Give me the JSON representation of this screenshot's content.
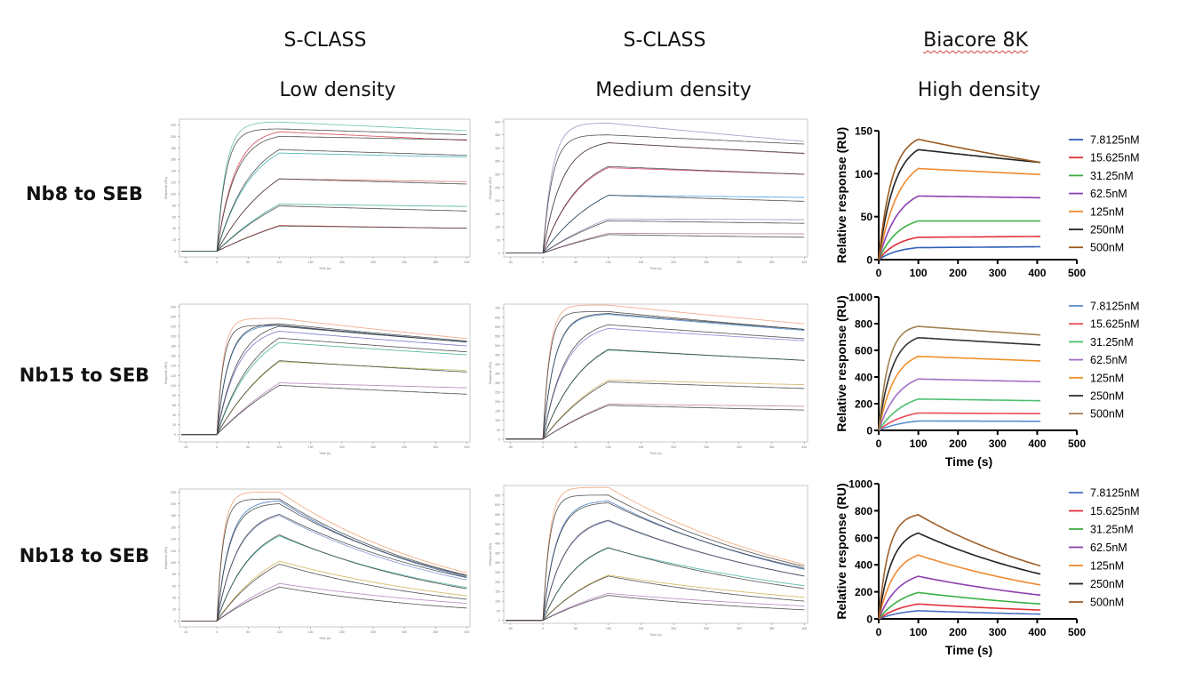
{
  "header": {
    "columns": [
      {
        "instrument": "S-CLASS",
        "density": "Low density"
      },
      {
        "instrument": "S-CLASS",
        "density": "Medium density"
      },
      {
        "instrument": "Biacore 8K",
        "density": "High density"
      }
    ]
  },
  "rows": [
    {
      "label": "Nb8 to SEB"
    },
    {
      "label": "Nb15 to SEB"
    },
    {
      "label": "Nb18 to SEB"
    }
  ],
  "chart_data": [
    {
      "id": "nb8-low",
      "type": "line",
      "style": "sclass",
      "title": "",
      "xlabel": "Time (s)",
      "ylabel": "Response (RU)",
      "xlim": [
        -60,
        405
      ],
      "ylim": [
        -10,
        230
      ],
      "xticks": [
        -50,
        0,
        50,
        100,
        150,
        200,
        250,
        300,
        350,
        400
      ],
      "yticks": [
        0,
        20,
        40,
        60,
        80,
        100,
        120,
        140,
        160,
        180,
        200,
        220
      ],
      "association_end": 100,
      "end": 400,
      "series": [
        {
          "peak": 45,
          "end": 40,
          "fit_peak": 44,
          "fit_end": 40,
          "k": 0.004,
          "color": "#e06060"
        },
        {
          "peak": 82,
          "end": 78,
          "fit_peak": 79,
          "fit_end": 70,
          "k": 0.006,
          "color": "#40b0a0"
        },
        {
          "peak": 126,
          "end": 121,
          "fit_peak": 126,
          "fit_end": 117,
          "k": 0.01,
          "color": "#d07070"
        },
        {
          "peak": 171,
          "end": 164,
          "fit_peak": 177,
          "fit_end": 167,
          "k": 0.018,
          "color": "#40b0b0"
        },
        {
          "peak": 208,
          "end": 193,
          "fit_peak": 200,
          "fit_end": 194,
          "k": 0.035,
          "color": "#d04050"
        },
        {
          "peak": 225,
          "end": 210,
          "fit_peak": 213,
          "fit_end": 203,
          "k": 0.07,
          "color": "#60c0b0"
        }
      ]
    },
    {
      "id": "nb8-medium",
      "type": "line",
      "style": "sclass",
      "title": "",
      "xlabel": "Time (s)",
      "ylabel": "Response (RU)",
      "xlim": [
        -60,
        405
      ],
      "ylim": [
        -15,
        510
      ],
      "xticks": [
        -50,
        0,
        50,
        100,
        150,
        200,
        250,
        300,
        350,
        400
      ],
      "yticks": [
        0,
        50,
        100,
        150,
        200,
        250,
        300,
        350,
        400,
        450,
        500
      ],
      "association_end": 100,
      "end": 400,
      "series": [
        {
          "peak": 75,
          "end": 73,
          "fit_peak": 70,
          "fit_end": 60,
          "k": 0.004,
          "color": "#c080a0"
        },
        {
          "peak": 130,
          "end": 127,
          "fit_peak": 123,
          "fit_end": 113,
          "k": 0.006,
          "color": "#a090c0"
        },
        {
          "peak": 220,
          "end": 212,
          "fit_peak": 220,
          "fit_end": 197,
          "k": 0.01,
          "color": "#40a0e0"
        },
        {
          "peak": 325,
          "end": 300,
          "fit_peak": 330,
          "fit_end": 300,
          "k": 0.018,
          "color": "#d04070"
        },
        {
          "peak": 420,
          "end": 378,
          "fit_peak": 420,
          "fit_end": 380,
          "k": 0.035,
          "color": "#c080a0"
        },
        {
          "peak": 495,
          "end": 425,
          "fit_peak": 450,
          "fit_end": 415,
          "k": 0.07,
          "color": "#a090c0"
        }
      ]
    },
    {
      "id": "nb8-high",
      "type": "line",
      "style": "biacore",
      "title": "",
      "xlabel": "",
      "ylabel": "Relative response (RU)",
      "xlim": [
        0,
        500
      ],
      "ylim": [
        0,
        150
      ],
      "xticks": [
        0,
        100,
        200,
        300,
        400,
        500
      ],
      "yticks": [
        0,
        50,
        100,
        150
      ],
      "association_end": 100,
      "end": 410,
      "legend": [
        "7.8125nM",
        "15.625nM",
        "31.25nM",
        "62.5nM",
        "125nM",
        "250nM",
        "500nM"
      ],
      "series": [
        {
          "name": "7.8125nM",
          "peak": 14,
          "end": 15,
          "k": 0.02,
          "color": "#2f5fb8"
        },
        {
          "name": "15.625nM",
          "peak": 26,
          "end": 27,
          "k": 0.02,
          "color": "#e0303a"
        },
        {
          "name": "31.25nM",
          "peak": 45,
          "end": 45,
          "k": 0.02,
          "color": "#3cb043"
        },
        {
          "name": "62.5nM",
          "peak": 74,
          "end": 72,
          "k": 0.02,
          "color": "#8e3fb0"
        },
        {
          "name": "125nM",
          "peak": 106,
          "end": 99,
          "k": 0.02,
          "color": "#f08a30"
        },
        {
          "name": "250nM",
          "peak": 128,
          "end": 113,
          "k": 0.025,
          "color": "#222222"
        },
        {
          "name": "500nM",
          "peak": 140,
          "end": 113,
          "k": 0.03,
          "color": "#9a5a20"
        }
      ]
    },
    {
      "id": "nb15-low",
      "type": "line",
      "style": "sclass",
      "title": "",
      "xlabel": "Time (s)",
      "ylabel": "Response (RU)",
      "xlim": [
        -60,
        405
      ],
      "ylim": [
        -15,
        265
      ],
      "xticks": [
        -50,
        0,
        50,
        100,
        150,
        200,
        250,
        300,
        350,
        400
      ],
      "yticks": [
        0,
        20,
        40,
        60,
        80,
        100,
        120,
        140,
        160,
        180,
        200,
        220,
        240,
        260
      ],
      "association_end": 100,
      "end": 400,
      "series": [
        {
          "peak": 105,
          "end": 95,
          "fit_peak": 100,
          "fit_end": 82,
          "k": 0.005,
          "color": "#b080b0"
        },
        {
          "peak": 148,
          "end": 130,
          "fit_peak": 150,
          "fit_end": 127,
          "k": 0.009,
          "color": "#c0c060"
        },
        {
          "peak": 187,
          "end": 162,
          "fit_peak": 196,
          "fit_end": 168,
          "k": 0.016,
          "color": "#40b090"
        },
        {
          "peak": 210,
          "end": 180,
          "fit_peak": 220,
          "fit_end": 188,
          "k": 0.03,
          "color": "#7070c0"
        },
        {
          "peak": 222,
          "end": 188,
          "fit_peak": 225,
          "fit_end": 190,
          "k": 0.055,
          "color": "#4080d0"
        },
        {
          "peak": 236,
          "end": 195,
          "fit_peak": 222,
          "fit_end": 188,
          "k": 0.1,
          "color": "#f0a080"
        }
      ]
    },
    {
      "id": "nb15-medium",
      "type": "line",
      "style": "sclass",
      "title": "",
      "xlabel": "Time (s)",
      "ylabel": "Response (RU)",
      "xlim": [
        -60,
        405
      ],
      "ylim": [
        -15,
        720
      ],
      "xticks": [
        -50,
        0,
        50,
        100,
        150,
        200,
        250,
        300,
        350,
        400
      ],
      "yticks": [
        0,
        50,
        100,
        150,
        200,
        250,
        300,
        350,
        400,
        450,
        500,
        550,
        600,
        650,
        700
      ],
      "association_end": 100,
      "end": 400,
      "series": [
        {
          "peak": 187,
          "end": 175,
          "fit_peak": 180,
          "fit_end": 155,
          "k": 0.005,
          "color": "#c080a0"
        },
        {
          "peak": 315,
          "end": 290,
          "fit_peak": 305,
          "fit_end": 270,
          "k": 0.009,
          "color": "#d0b060"
        },
        {
          "peak": 475,
          "end": 420,
          "fit_peak": 478,
          "fit_end": 420,
          "k": 0.016,
          "color": "#40a080"
        },
        {
          "peak": 590,
          "end": 525,
          "fit_peak": 610,
          "fit_end": 535,
          "k": 0.03,
          "color": "#8080d0"
        },
        {
          "peak": 665,
          "end": 580,
          "fit_peak": 670,
          "fit_end": 585,
          "k": 0.055,
          "color": "#4080d0"
        },
        {
          "peak": 715,
          "end": 615,
          "fit_peak": 680,
          "fit_end": 585,
          "k": 0.1,
          "color": "#f0a080"
        }
      ]
    },
    {
      "id": "nb15-high",
      "type": "line",
      "style": "biacore",
      "title": "",
      "xlabel": "Time (s)",
      "ylabel": "Relative response (RU)",
      "xlim": [
        0,
        500
      ],
      "ylim": [
        0,
        1000
      ],
      "xticks": [
        0,
        100,
        200,
        300,
        400,
        500
      ],
      "yticks": [
        0,
        200,
        400,
        600,
        800,
        1000
      ],
      "association_end": 100,
      "end": 410,
      "legend": [
        "7.8125nM",
        "15.625nM",
        "31.25nM",
        "62.5nM",
        "125nM",
        "250nM",
        "500nM"
      ],
      "series": [
        {
          "name": "7.8125nM",
          "peak": 70,
          "end": 68,
          "k": 0.015,
          "color": "#5b8fd0"
        },
        {
          "name": "15.625nM",
          "peak": 130,
          "end": 125,
          "k": 0.015,
          "color": "#e84a5a"
        },
        {
          "name": "31.25nM",
          "peak": 235,
          "end": 222,
          "k": 0.015,
          "color": "#4cc070"
        },
        {
          "name": "62.5nM",
          "peak": 385,
          "end": 365,
          "k": 0.02,
          "color": "#a070c8"
        },
        {
          "name": "125nM",
          "peak": 555,
          "end": 520,
          "k": 0.025,
          "color": "#f0902a"
        },
        {
          "name": "250nM",
          "peak": 695,
          "end": 640,
          "k": 0.03,
          "color": "#333333"
        },
        {
          "name": "500nM",
          "peak": 780,
          "end": 715,
          "k": 0.04,
          "color": "#a08050"
        }
      ]
    },
    {
      "id": "nb18-low",
      "type": "line",
      "style": "sclass",
      "title": "",
      "xlabel": "Time (s)",
      "ylabel": "Response (RU)",
      "xlim": [
        -60,
        405
      ],
      "ylim": [
        -10,
        225
      ],
      "xticks": [
        -50,
        0,
        50,
        100,
        150,
        200,
        250,
        300,
        350,
        400
      ],
      "yticks": [
        0,
        20,
        40,
        60,
        80,
        100,
        120,
        140,
        160,
        180,
        200,
        220
      ],
      "association_end": 100,
      "end": 400,
      "series": [
        {
          "peak": 64,
          "end": 30,
          "fit_peak": 58,
          "fit_end": 22,
          "k": 0.006,
          "color": "#b080c0"
        },
        {
          "peak": 102,
          "end": 43,
          "fit_peak": 97,
          "fit_end": 37,
          "k": 0.01,
          "color": "#d0b050"
        },
        {
          "peak": 145,
          "end": 57,
          "fit_peak": 147,
          "fit_end": 55,
          "k": 0.018,
          "color": "#40b0a0"
        },
        {
          "peak": 180,
          "end": 70,
          "fit_peak": 182,
          "fit_end": 74,
          "k": 0.03,
          "color": "#8090d0"
        },
        {
          "peak": 205,
          "end": 75,
          "fit_peak": 200,
          "fit_end": 77,
          "k": 0.05,
          "color": "#4070c0"
        },
        {
          "peak": 220,
          "end": 82,
          "fit_peak": 208,
          "fit_end": 78,
          "k": 0.1,
          "color": "#f0a070"
        }
      ]
    },
    {
      "id": "nb18-medium",
      "type": "line",
      "style": "sclass",
      "title": "",
      "xlabel": "Time (s)",
      "ylabel": "Response (RU)",
      "xlim": [
        -60,
        405
      ],
      "ylim": [
        -15,
        700
      ],
      "xticks": [
        -50,
        0,
        50,
        100,
        150,
        200,
        250,
        300,
        350,
        400
      ],
      "yticks": [
        0,
        50,
        100,
        150,
        200,
        250,
        300,
        350,
        400,
        450,
        500,
        550,
        600,
        650
      ],
      "association_end": 100,
      "end": 400,
      "series": [
        {
          "peak": 140,
          "end": 75,
          "fit_peak": 130,
          "fit_end": 55,
          "k": 0.006,
          "color": "#b080c0"
        },
        {
          "peak": 235,
          "end": 120,
          "fit_peak": 230,
          "fit_end": 100,
          "k": 0.01,
          "color": "#d0b050"
        },
        {
          "peak": 375,
          "end": 180,
          "fit_peak": 378,
          "fit_end": 165,
          "k": 0.018,
          "color": "#40b0a0"
        },
        {
          "peak": 515,
          "end": 230,
          "fit_peak": 520,
          "fit_end": 230,
          "k": 0.03,
          "color": "#8090d0"
        },
        {
          "peak": 620,
          "end": 265,
          "fit_peak": 610,
          "fit_end": 270,
          "k": 0.05,
          "color": "#4070c0"
        },
        {
          "peak": 690,
          "end": 290,
          "fit_peak": 650,
          "fit_end": 280,
          "k": 0.1,
          "color": "#f0a070"
        }
      ]
    },
    {
      "id": "nb18-high",
      "type": "line",
      "style": "biacore",
      "title": "",
      "xlabel": "Time (s)",
      "ylabel": "Relative response (RU)",
      "xlim": [
        0,
        500
      ],
      "ylim": [
        0,
        1000
      ],
      "xticks": [
        0,
        100,
        200,
        300,
        400,
        500
      ],
      "yticks": [
        0,
        200,
        400,
        600,
        800,
        1000
      ],
      "association_end": 100,
      "end": 410,
      "legend": [
        "7.8125nM",
        "15.625nM",
        "31.25nM",
        "62.5nM",
        "125nM",
        "250nM",
        "500nM"
      ],
      "series": [
        {
          "name": "7.8125nM",
          "peak": 60,
          "end": 35,
          "k": 0.015,
          "color": "#4a70c0"
        },
        {
          "name": "15.625nM",
          "peak": 110,
          "end": 65,
          "k": 0.015,
          "color": "#e0303a"
        },
        {
          "name": "31.25nM",
          "peak": 195,
          "end": 110,
          "k": 0.015,
          "color": "#3cb043"
        },
        {
          "name": "62.5nM",
          "peak": 315,
          "end": 175,
          "k": 0.02,
          "color": "#8e3fb0"
        },
        {
          "name": "125nM",
          "peak": 472,
          "end": 250,
          "k": 0.025,
          "color": "#f08a30"
        },
        {
          "name": "250nM",
          "peak": 635,
          "end": 330,
          "k": 0.03,
          "color": "#222222"
        },
        {
          "name": "500nM",
          "peak": 770,
          "end": 390,
          "k": 0.04,
          "color": "#a0602a"
        }
      ]
    }
  ]
}
